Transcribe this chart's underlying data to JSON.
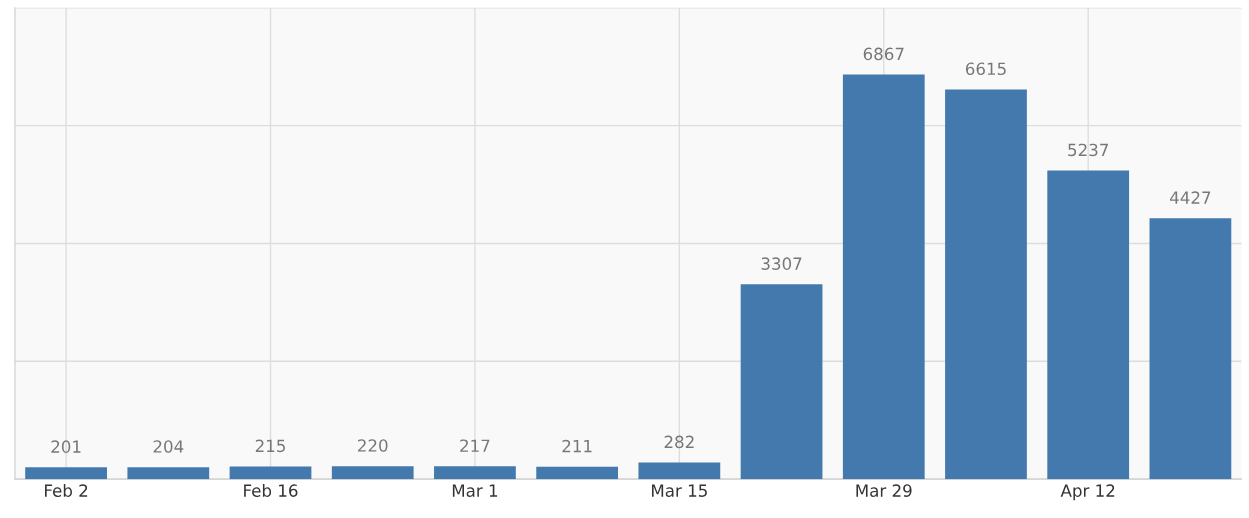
{
  "chart_data": {
    "type": "bar",
    "categories": [
      "Feb 2",
      null,
      "Feb 16",
      null,
      "Mar 1",
      null,
      "Mar 15",
      null,
      "Mar 29",
      null,
      "Apr 12",
      null
    ],
    "values": [
      201,
      204,
      215,
      220,
      217,
      211,
      282,
      3307,
      6867,
      6615,
      5237,
      4427
    ],
    "color": "#4479ad",
    "ylim": [
      0,
      8000
    ],
    "yticks": [
      {
        "value": 0,
        "label": null
      },
      {
        "value": 2000,
        "label": null
      },
      {
        "value": 4000,
        "label": null
      },
      {
        "value": 6000,
        "label": null
      },
      {
        "value": 8000,
        "label": null
      }
    ],
    "tick_labels": "x",
    "grid": true,
    "data_labels": true
  }
}
